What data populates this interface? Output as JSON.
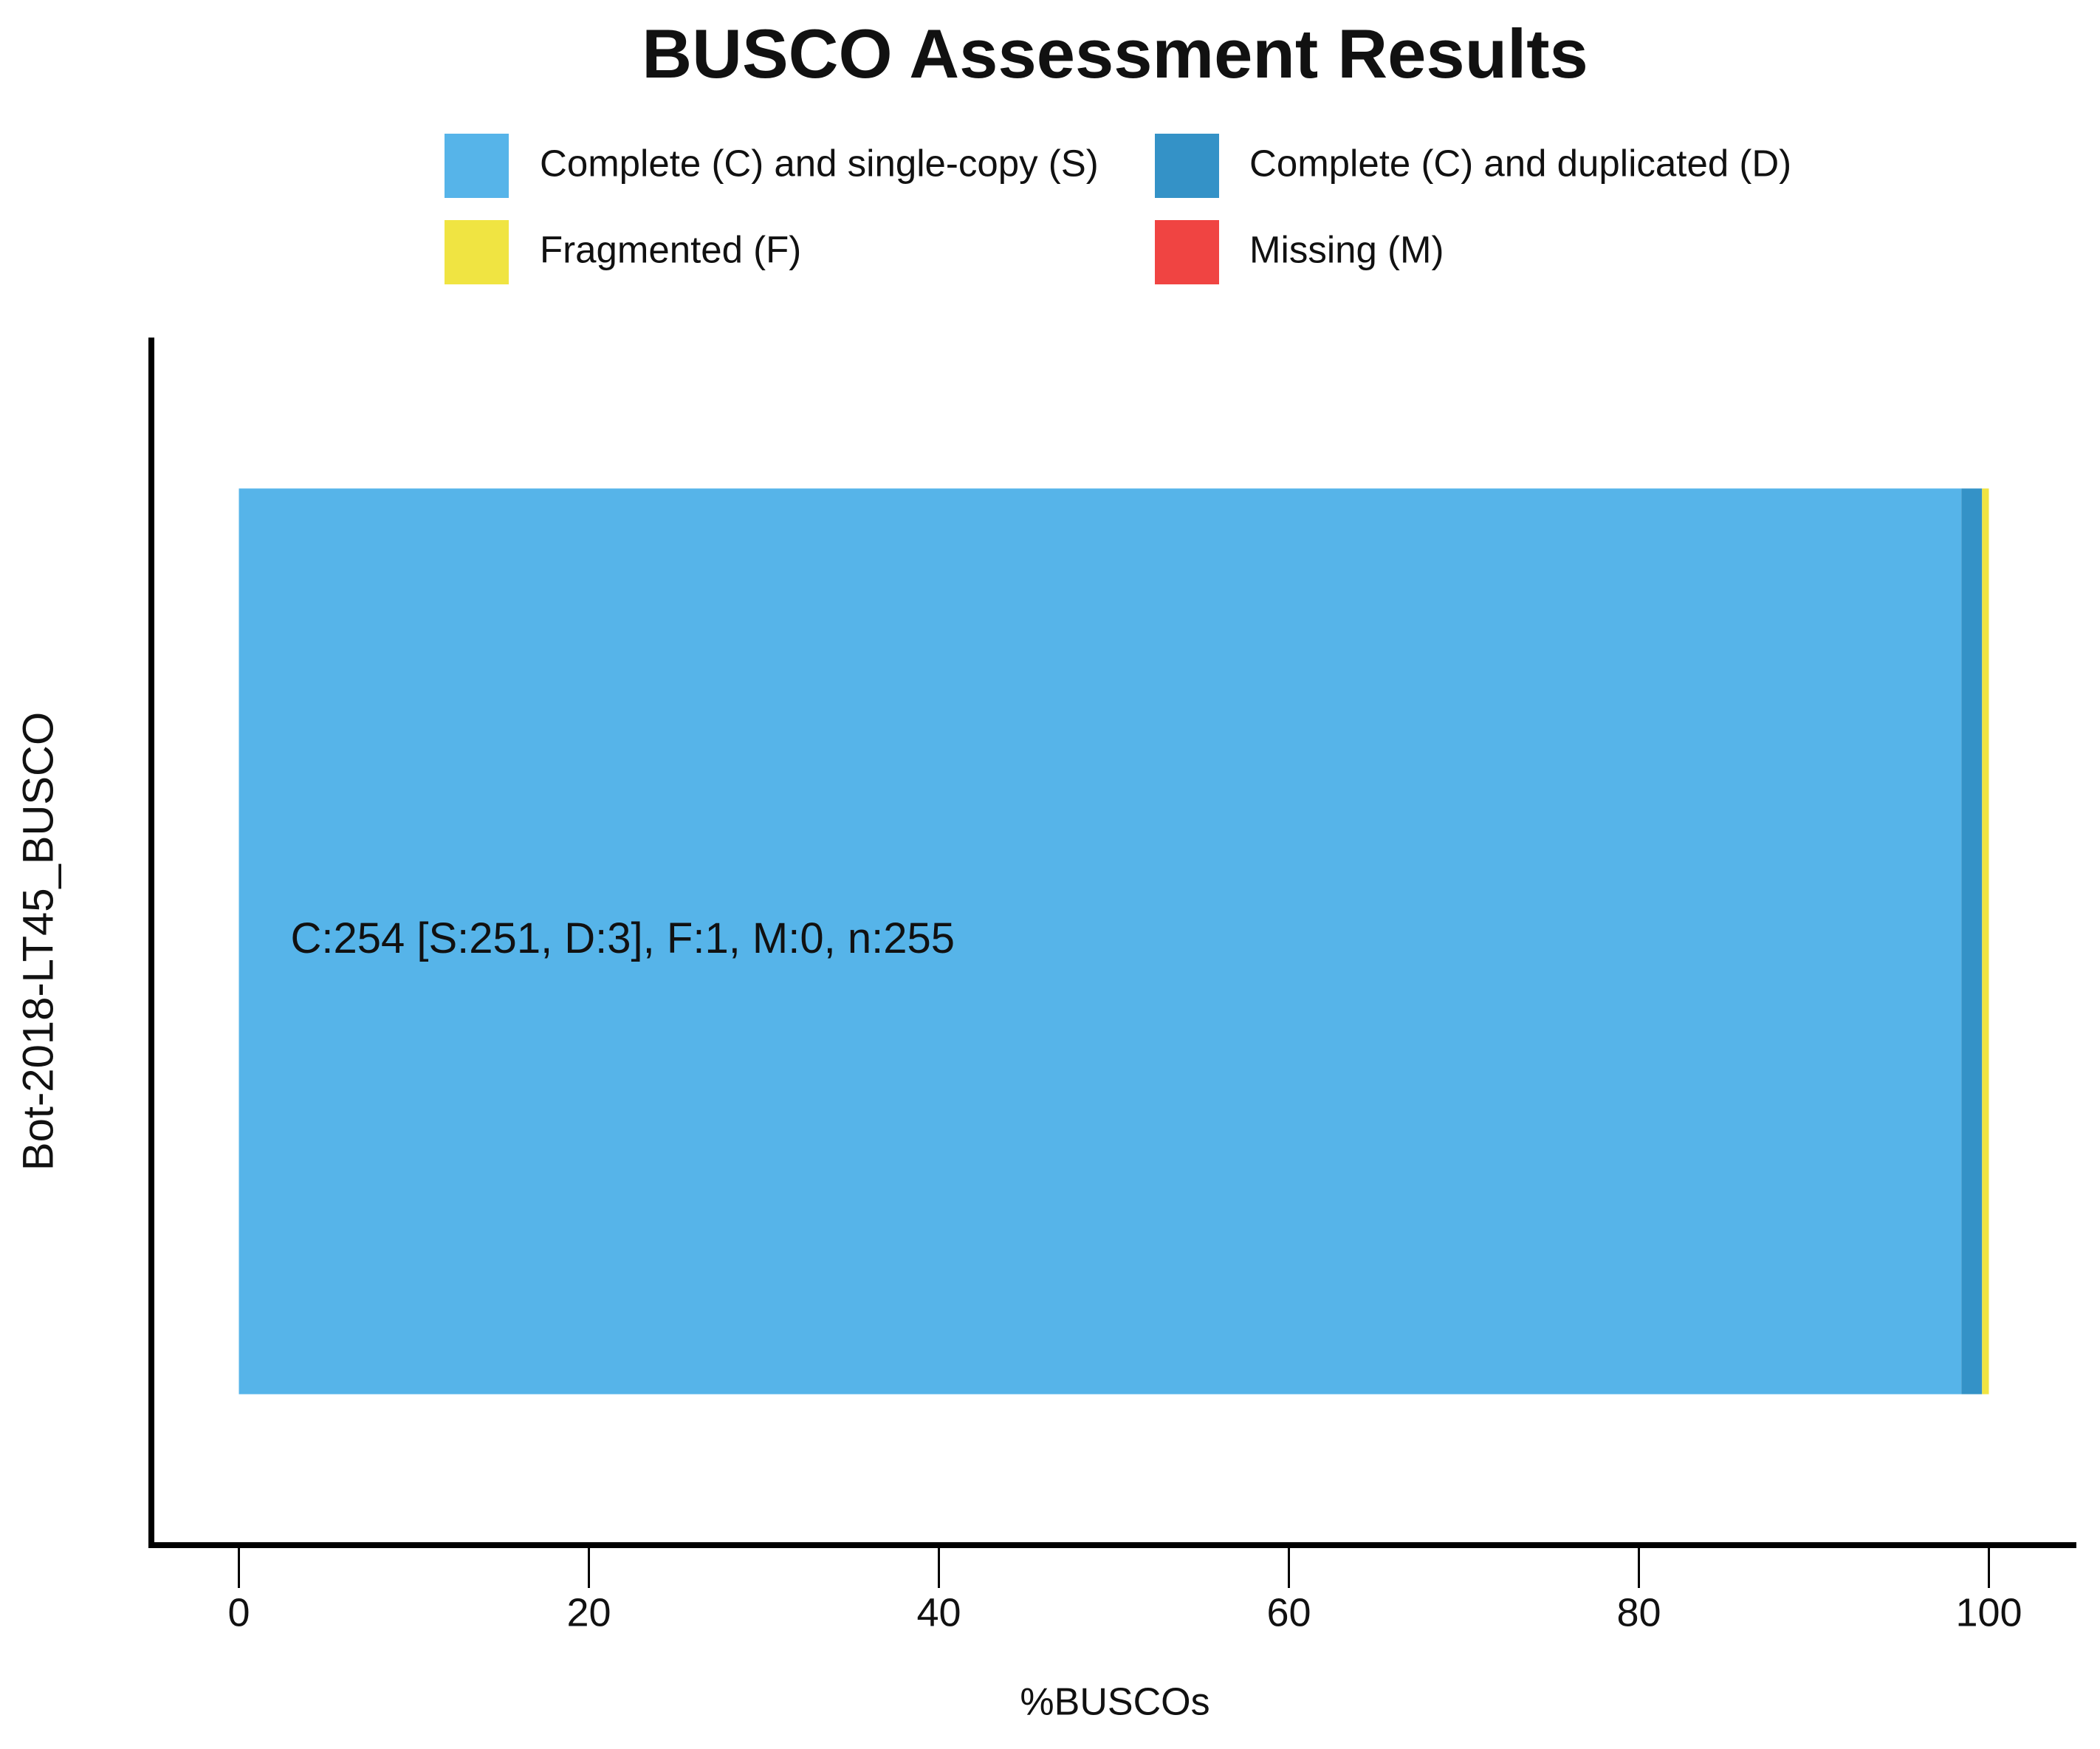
{
  "chart_data": {
    "type": "stacked_barh",
    "title": "BUSCO Assessment Results",
    "categories": [
      "Bot-2018-LT45_BUSCO"
    ],
    "series": [
      {
        "name": "Complete (C) and single-copy (S)",
        "color": "#56b4e9",
        "values": [
          98.43
        ]
      },
      {
        "name": "Complete (C) and duplicated (D)",
        "color": "#3492c7",
        "values": [
          1.18
        ]
      },
      {
        "name": "Fragmented (F)",
        "color": "#f0e442",
        "values": [
          0.39
        ]
      },
      {
        "name": "Missing (M)",
        "color": "#f04442",
        "values": [
          0
        ]
      }
    ],
    "annotation": "C:254 [S:251, D:3], F:1, M:0, n:255",
    "xlabel": "%BUSCOs",
    "xlim": [
      -5,
      105
    ],
    "xticks": [
      0,
      20,
      40,
      60,
      80,
      100
    ],
    "legend": "top"
  }
}
